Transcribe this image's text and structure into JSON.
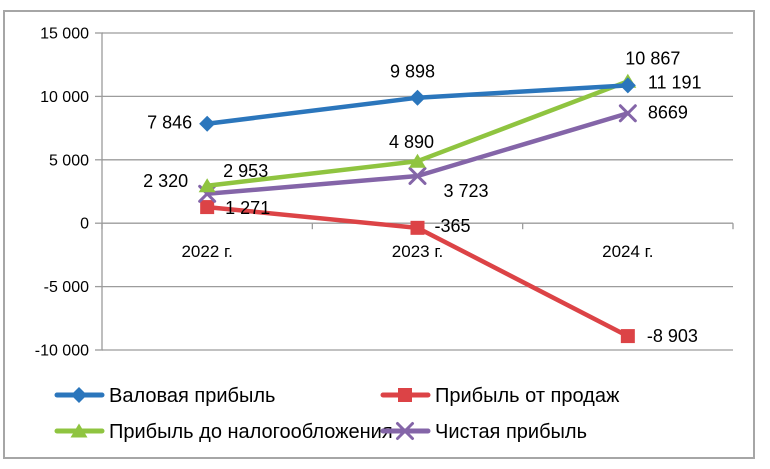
{
  "chart_data": {
    "type": "line",
    "title": "",
    "categories": [
      "2022 г.",
      "2023 г.",
      "2024 г."
    ],
    "series": [
      {
        "name": "Валовая прибыль",
        "marker": "diamond",
        "color": "#2B76BC",
        "values": [
          7846,
          9898,
          10867
        ],
        "point_labels": [
          "7 846",
          "9 898",
          "10 867"
        ]
      },
      {
        "name": "Прибыль от продаж",
        "marker": "square",
        "color": "#DC4346",
        "values": [
          1271,
          -365,
          -8903
        ],
        "point_labels": [
          "1 271",
          "-365",
          "-8 903"
        ]
      },
      {
        "name": "Прибыль до налогообложения",
        "marker": "triangle",
        "color": "#8FC440",
        "values": [
          2953,
          4890,
          11191
        ],
        "point_labels": [
          "2 953",
          "4 890",
          "11 191"
        ]
      },
      {
        "name": "Чистая прибыль",
        "marker": "x",
        "color": "#8465A8",
        "values": [
          2320,
          3723,
          8669
        ],
        "point_labels": [
          "2 320",
          "3 723",
          "8669"
        ]
      }
    ],
    "y_axis": {
      "min": -10000,
      "max": 15000,
      "step": 5000,
      "tick_labels": [
        "15 000",
        "10 000",
        "5 000",
        "0",
        "-5 000",
        "-10 000"
      ]
    },
    "x_axis": {
      "label": ""
    },
    "grid": true,
    "legend_position": "bottom",
    "colors": {
      "grid": "#9C9C9C",
      "axis": "#9C9C9C",
      "text": "#000000",
      "frame_border": "#A6A6A6",
      "background": "#FFFFFF"
    },
    "label_offsets": [
      [
        [
          -15,
          5,
          "end"
        ],
        [
          -5,
          -20,
          "middle"
        ],
        [
          25,
          -21,
          "middle"
        ]
      ],
      [
        [
          18,
          7,
          "start"
        ],
        [
          17,
          4,
          "start"
        ],
        [
          19,
          6,
          "start"
        ]
      ],
      [
        [
          16,
          -9,
          "start"
        ],
        [
          -6,
          -13,
          "middle"
        ],
        [
          20,
          7,
          "start"
        ]
      ],
      [
        [
          -19,
          -7,
          "end"
        ],
        [
          26,
          21,
          "start"
        ],
        [
          20,
          5,
          "start"
        ]
      ]
    ]
  }
}
